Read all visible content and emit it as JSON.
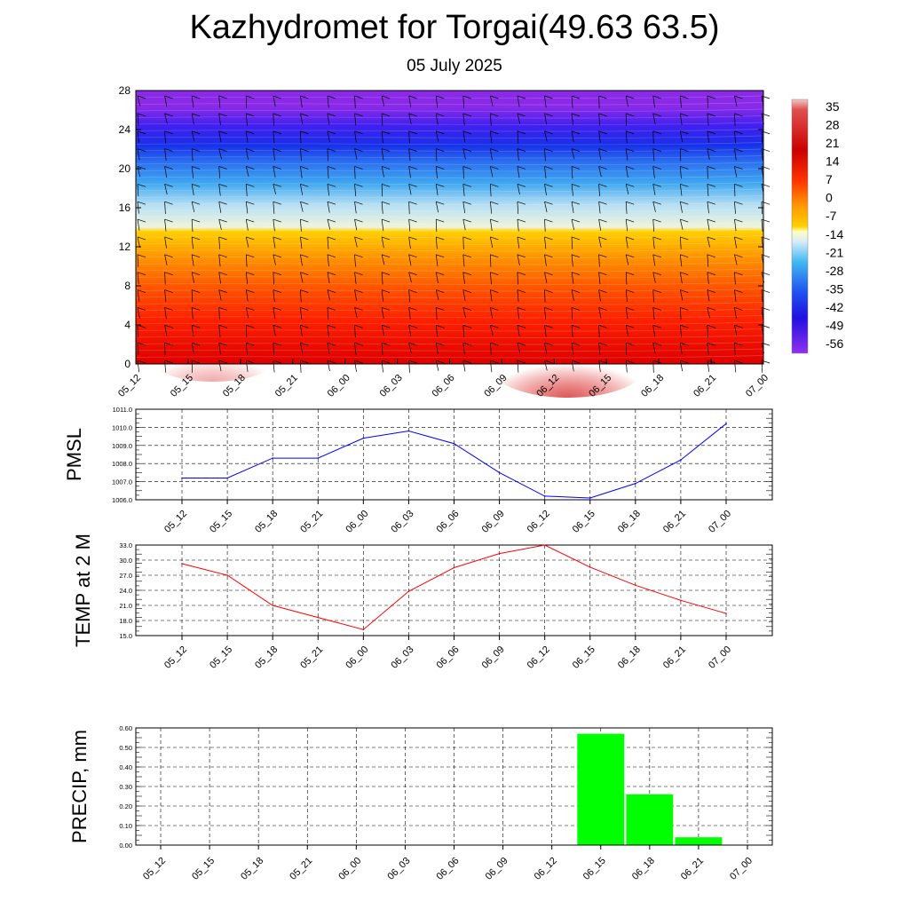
{
  "header": {
    "title": "Kazhydromet for Torgai(49.63 63.5)",
    "subtitle": "05 July 2025"
  },
  "chart_data": [
    {
      "type": "heatmap",
      "title": "",
      "xlabel": "",
      "ylabel": "",
      "x_ticks": [
        "05_12",
        "05_15",
        "05_18",
        "05_21",
        "06_00",
        "06_03",
        "06_06",
        "06_09",
        "06_12",
        "06_15",
        "06_18",
        "06_21",
        "07_00"
      ],
      "y_ticks": [
        "0",
        "4",
        "8",
        "12",
        "16",
        "20",
        "24",
        "28"
      ],
      "ylim": [
        0,
        28
      ],
      "colorbar_labels": [
        "35",
        "28",
        "21",
        "14",
        "7",
        "0",
        "-7",
        "-14",
        "-21",
        "-28",
        "-35",
        "-42",
        "-49",
        "-56"
      ],
      "colorbar_range": [
        -56,
        35
      ],
      "wind_barbs": "shown"
    },
    {
      "type": "line",
      "ylabel": "PMSL",
      "categories": [
        "05_12",
        "05_15",
        "05_18",
        "05_21",
        "06_00",
        "06_03",
        "06_06",
        "06_09",
        "06_12",
        "06_15",
        "06_18",
        "06_21",
        "07_00"
      ],
      "values": [
        1007.2,
        1007.2,
        1008.3,
        1008.3,
        1009.4,
        1009.8,
        1009.1,
        1007.5,
        1006.2,
        1006.1,
        1006.9,
        1008.2,
        1010.2
      ],
      "ylim": [
        1006.0,
        1011.0
      ],
      "y_ticks": [
        "1006.0",
        "1007.0",
        "1008.0",
        "1009.0",
        "1010.0",
        "1011.0"
      ],
      "color": "#0000ff"
    },
    {
      "type": "line",
      "ylabel": "TEMP at 2 M",
      "categories": [
        "05_12",
        "05_15",
        "05_18",
        "05_21",
        "06_00",
        "06_03",
        "06_06",
        "06_09",
        "06_12",
        "06_15",
        "06_18",
        "06_21",
        "07_00"
      ],
      "values": [
        29.3,
        27.0,
        21.0,
        18.6,
        16.2,
        23.8,
        28.5,
        31.3,
        33.0,
        28.6,
        25.0,
        22.0,
        19.4
      ],
      "ylim": [
        15.0,
        33.0
      ],
      "y_ticks": [
        "15.0",
        "18.0",
        "21.0",
        "24.0",
        "27.0",
        "30.0",
        "33.0"
      ],
      "color": "#ff0000"
    },
    {
      "type": "bar",
      "ylabel": "PRECIP, mm",
      "categories": [
        "05_12",
        "05_15",
        "05_18",
        "05_21",
        "06_00",
        "06_03",
        "06_06",
        "06_09",
        "06_12",
        "06_15",
        "06_18",
        "06_21",
        "07_00"
      ],
      "values": [
        0,
        0,
        0,
        0,
        0,
        0,
        0,
        0,
        0,
        0.57,
        0.26,
        0.04,
        0
      ],
      "ylim": [
        0,
        0.6
      ],
      "y_ticks": [
        "0.00",
        "0.10",
        "0.20",
        "0.30",
        "0.40",
        "0.50",
        "0.60"
      ],
      "color": "#00ff00"
    }
  ]
}
